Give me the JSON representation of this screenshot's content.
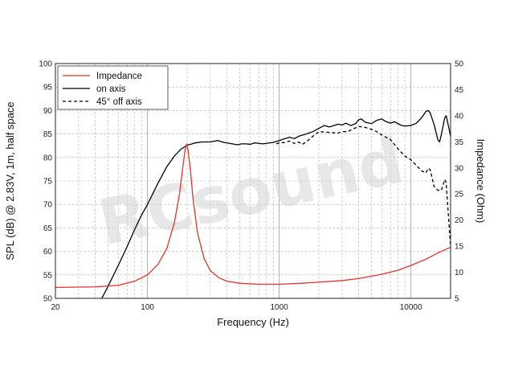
{
  "chart_data": {
    "type": "line",
    "title": "",
    "xlabel": "Frequency (Hz)",
    "ylabel_left": "SPL (dB) @ 2.83V, 1m, half space",
    "ylabel_right": "Impedance (Ohm)",
    "x_scale": "log",
    "xlim": [
      20,
      20000
    ],
    "ylim_left": [
      50,
      100
    ],
    "ylim_right": [
      5,
      50
    ],
    "x_ticks": [
      {
        "value": 20,
        "label": "20"
      },
      {
        "value": 100,
        "label": "100"
      },
      {
        "value": 1000,
        "label": "1000"
      },
      {
        "value": 10000,
        "label": "10000"
      }
    ],
    "y_ticks_left": [
      {
        "value": 50,
        "label": "50"
      },
      {
        "value": 55,
        "label": "55"
      },
      {
        "value": 60,
        "label": "60"
      },
      {
        "value": 65,
        "label": "65"
      },
      {
        "value": 70,
        "label": "70"
      },
      {
        "value": 75,
        "label": "75"
      },
      {
        "value": 80,
        "label": "80"
      },
      {
        "value": 85,
        "label": "85"
      },
      {
        "value": 90,
        "label": "90"
      },
      {
        "value": 95,
        "label": "95"
      },
      {
        "value": 100,
        "label": "100"
      }
    ],
    "y_ticks_right": [
      {
        "value": 5,
        "label": "5"
      },
      {
        "value": 10,
        "label": "10"
      },
      {
        "value": 15,
        "label": "15"
      },
      {
        "value": 20,
        "label": "20"
      },
      {
        "value": 25,
        "label": "25"
      },
      {
        "value": 30,
        "label": "30"
      },
      {
        "value": 35,
        "label": "35"
      },
      {
        "value": 40,
        "label": "40"
      },
      {
        "value": 45,
        "label": "45"
      },
      {
        "value": 50,
        "label": "50"
      }
    ],
    "grid": true,
    "legend_position": "top-left",
    "watermark": "RCsound",
    "series": [
      {
        "name": "Impedance",
        "axis": "right",
        "color": "#e0332a",
        "dash": "solid",
        "points": [
          [
            20,
            7.1
          ],
          [
            40,
            7.2
          ],
          [
            60,
            7.5
          ],
          [
            80,
            8.3
          ],
          [
            100,
            9.5
          ],
          [
            120,
            11.5
          ],
          [
            140,
            14.5
          ],
          [
            160,
            19.5
          ],
          [
            175,
            25
          ],
          [
            185,
            30
          ],
          [
            193,
            33.5
          ],
          [
            198,
            34.6
          ],
          [
            203,
            33.5
          ],
          [
            212,
            29.5
          ],
          [
            222,
            24
          ],
          [
            240,
            17.5
          ],
          [
            270,
            12.5
          ],
          [
            300,
            10.3
          ],
          [
            350,
            8.9
          ],
          [
            400,
            8.3
          ],
          [
            500,
            7.9
          ],
          [
            700,
            7.7
          ],
          [
            1000,
            7.7
          ],
          [
            1500,
            7.9
          ],
          [
            2000,
            8.1
          ],
          [
            3000,
            8.4
          ],
          [
            4000,
            8.8
          ],
          [
            6000,
            9.6
          ],
          [
            8000,
            10.4
          ],
          [
            10000,
            11.3
          ],
          [
            13000,
            12.5
          ],
          [
            16000,
            13.7
          ],
          [
            20000,
            14.8
          ]
        ]
      },
      {
        "name": "on axis",
        "axis": "left",
        "color": "#000000",
        "dash": "solid",
        "points": [
          [
            45,
            50
          ],
          [
            50,
            52.5
          ],
          [
            60,
            57
          ],
          [
            70,
            61
          ],
          [
            80,
            64.7
          ],
          [
            90,
            67.7
          ],
          [
            100,
            70
          ],
          [
            120,
            74.5
          ],
          [
            140,
            78
          ],
          [
            160,
            80.3
          ],
          [
            180,
            81.8
          ],
          [
            200,
            82.6
          ],
          [
            230,
            83.1
          ],
          [
            260,
            83.3
          ],
          [
            300,
            83.3
          ],
          [
            340,
            83.6
          ],
          [
            380,
            83.2
          ],
          [
            420,
            83
          ],
          [
            480,
            82.7
          ],
          [
            520,
            82.9
          ],
          [
            560,
            82.9
          ],
          [
            600,
            82.8
          ],
          [
            650,
            83.1
          ],
          [
            700,
            83
          ],
          [
            750,
            82.9
          ],
          [
            800,
            83
          ],
          [
            900,
            83.2
          ],
          [
            1000,
            83.6
          ],
          [
            1100,
            84
          ],
          [
            1200,
            84.3
          ],
          [
            1300,
            84
          ],
          [
            1400,
            84.5
          ],
          [
            1600,
            85
          ],
          [
            1800,
            85.5
          ],
          [
            2000,
            86.2
          ],
          [
            2200,
            86.8
          ],
          [
            2400,
            86.5
          ],
          [
            2600,
            86.8
          ],
          [
            2800,
            87.1
          ],
          [
            3000,
            86.9
          ],
          [
            3200,
            87.3
          ],
          [
            3500,
            86.8
          ],
          [
            3800,
            87.2
          ],
          [
            4000,
            88
          ],
          [
            4200,
            88.2
          ],
          [
            4500,
            87.5
          ],
          [
            5000,
            87.2
          ],
          [
            5500,
            87.9
          ],
          [
            6000,
            88.2
          ],
          [
            6500,
            87.6
          ],
          [
            7000,
            87.3
          ],
          [
            7500,
            87.6
          ],
          [
            8000,
            87.2
          ],
          [
            8500,
            86.8
          ],
          [
            9000,
            86.7
          ],
          [
            10000,
            86.8
          ],
          [
            11000,
            87.3
          ],
          [
            12000,
            88.4
          ],
          [
            13000,
            89.8
          ],
          [
            13500,
            90.0
          ],
          [
            14000,
            89.5
          ],
          [
            15000,
            87
          ],
          [
            16000,
            83.8
          ],
          [
            16500,
            83.3
          ],
          [
            17000,
            84.8
          ],
          [
            18000,
            88.3
          ],
          [
            18500,
            88.9
          ],
          [
            19000,
            87.5
          ],
          [
            20000,
            84.5
          ]
        ]
      },
      {
        "name": "45° off axis",
        "axis": "left",
        "color": "#000000",
        "dash": "dashed",
        "points": [
          [
            950,
            82.9
          ],
          [
            1000,
            83.1
          ],
          [
            1100,
            83.2
          ],
          [
            1200,
            83.5
          ],
          [
            1300,
            83
          ],
          [
            1400,
            83.3
          ],
          [
            1500,
            82.8
          ],
          [
            1600,
            83.3
          ],
          [
            1800,
            84.5
          ],
          [
            2000,
            85.5
          ],
          [
            2200,
            85.4
          ],
          [
            2500,
            85.3
          ],
          [
            2800,
            85.2
          ],
          [
            3000,
            85.5
          ],
          [
            3300,
            85.5
          ],
          [
            3600,
            86
          ],
          [
            4000,
            86.6
          ],
          [
            4500,
            86.4
          ],
          [
            5000,
            86
          ],
          [
            5500,
            85.5
          ],
          [
            6000,
            84.8
          ],
          [
            7000,
            83.8
          ],
          [
            8000,
            81.8
          ],
          [
            9000,
            80.3
          ],
          [
            10000,
            79.5
          ],
          [
            11000,
            78.3
          ],
          [
            12000,
            77.2
          ],
          [
            13000,
            76.7
          ],
          [
            13500,
            77.7
          ],
          [
            14000,
            77.4
          ],
          [
            15000,
            73.8
          ],
          [
            16000,
            73
          ],
          [
            17000,
            73
          ],
          [
            17500,
            74
          ],
          [
            18000,
            75.3
          ],
          [
            18500,
            74.7
          ],
          [
            19000,
            70
          ],
          [
            20000,
            61
          ]
        ]
      }
    ]
  }
}
